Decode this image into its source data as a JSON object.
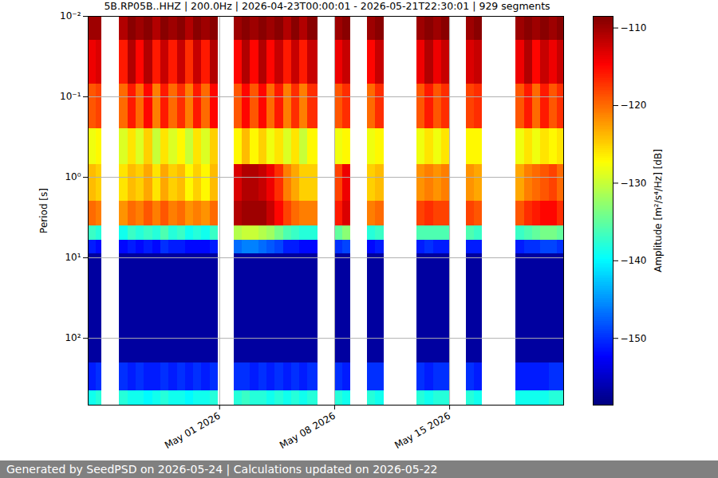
{
  "chart_data": {
    "type": "heatmap",
    "title": "5B.RP05B..HHZ | 200.0Hz | 2026-04-23T00:00:01 - 2026-05-21T22:30:01 | 929 segments",
    "footer": "Generated by SeedPSD on 2026-05-24 | Calculations updated on 2026-05-22",
    "y_label": "Period [s]",
    "colorbar_label": "Amplitude [m²/s⁴/Hz] [dB]",
    "log": "y",
    "grid": true,
    "xlim": [
      "2026-04-23T00:00:01Z",
      "2026-05-21T22:30:01Z"
    ],
    "xticks": [
      {
        "value": "2026-05-01T00:00:00Z",
        "label": "May 01 2026"
      },
      {
        "value": "2026-05-08T00:00:00Z",
        "label": "May 08 2026"
      },
      {
        "value": "2026-05-15T00:00:00Z",
        "label": "May 15 2026"
      }
    ],
    "ylim": [
      0.01,
      676
    ],
    "yticks": [
      {
        "value": 0.01,
        "label": "10⁻²"
      },
      {
        "value": 0.1,
        "label": "10⁻¹"
      },
      {
        "value": 1,
        "label": "10⁰"
      },
      {
        "value": 10,
        "label": "10¹"
      },
      {
        "value": 100,
        "label": "10²"
      }
    ],
    "period_bins": [
      0.01,
      0.02,
      0.07,
      0.25,
      0.7,
      2,
      4,
      6,
      9,
      200,
      450,
      676
    ],
    "columns": [
      {
        "start": "2026-04-23T00:00:01Z",
        "end": "2026-04-23T12:00:00Z",
        "values": [
          -110,
          -114,
          -119,
          -128,
          -124,
          -120,
          -137,
          -151,
          -157,
          -151,
          -139
        ]
      },
      {
        "start": "2026-04-23T12:00:00Z",
        "end": "2026-04-23T20:00:00Z",
        "values": [
          -110,
          -113,
          -118,
          -127,
          -125,
          -121,
          -138,
          -152,
          -157,
          -150,
          -138
        ]
      },
      {
        "start": "2026-04-24T22:00:00Z",
        "end": "2026-04-25T10:00:00Z",
        "values": [
          -111,
          -116,
          -120,
          -129,
          -126,
          -122,
          -139,
          -152,
          -157,
          -150,
          -138
        ]
      },
      {
        "start": "2026-04-25T10:00:00Z",
        "end": "2026-04-25T22:00:00Z",
        "values": [
          -109,
          -111,
          -116,
          -126,
          -124,
          -120,
          -137,
          -151,
          -157,
          -151,
          -139
        ]
      },
      {
        "start": "2026-04-25T22:00:00Z",
        "end": "2026-04-26T10:00:00Z",
        "values": [
          -110,
          -115,
          -120,
          -129,
          -125,
          -121,
          -138,
          -152,
          -157,
          -150,
          -139
        ]
      },
      {
        "start": "2026-04-26T10:00:00Z",
        "end": "2026-04-26T22:00:00Z",
        "values": [
          -109,
          -111,
          -115,
          -125,
          -123,
          -119,
          -137,
          -151,
          -157,
          -151,
          -140
        ]
      },
      {
        "start": "2026-04-26T22:00:00Z",
        "end": "2026-04-27T10:00:00Z",
        "values": [
          -111,
          -116,
          -121,
          -130,
          -126,
          -121,
          -138,
          -152,
          -157,
          -151,
          -139
        ]
      },
      {
        "start": "2026-04-27T10:00:00Z",
        "end": "2026-04-27T22:00:00Z",
        "values": [
          -109,
          -112,
          -116,
          -126,
          -123,
          -119,
          -136,
          -150,
          -157,
          -150,
          -138
        ]
      },
      {
        "start": "2026-04-27T22:00:00Z",
        "end": "2026-04-28T10:00:00Z",
        "values": [
          -110,
          -116,
          -120,
          -129,
          -125,
          -121,
          -138,
          -151,
          -157,
          -151,
          -139
        ]
      },
      {
        "start": "2026-04-28T10:00:00Z",
        "end": "2026-04-28T22:00:00Z",
        "values": [
          -109,
          -112,
          -117,
          -127,
          -124,
          -120,
          -137,
          -151,
          -157,
          -150,
          -139
        ]
      },
      {
        "start": "2026-04-28T22:00:00Z",
        "end": "2026-04-29T10:00:00Z",
        "values": [
          -111,
          -117,
          -121,
          -130,
          -127,
          -122,
          -139,
          -152,
          -157,
          -151,
          -140
        ]
      },
      {
        "start": "2026-04-29T10:00:00Z",
        "end": "2026-04-29T22:00:00Z",
        "values": [
          -109,
          -112,
          -116,
          -126,
          -125,
          -121,
          -138,
          -152,
          -157,
          -150,
          -139
        ]
      },
      {
        "start": "2026-04-29T22:00:00Z",
        "end": "2026-04-30T10:00:00Z",
        "values": [
          -110,
          -116,
          -120,
          -129,
          -127,
          -122,
          -139,
          -152,
          -157,
          -151,
          -139
        ]
      },
      {
        "start": "2026-04-30T10:00:00Z",
        "end": "2026-04-30T22:00:00Z",
        "values": [
          -109,
          -111,
          -115,
          -125,
          -124,
          -120,
          -137,
          -151,
          -157,
          -150,
          -138
        ]
      },
      {
        "start": "2026-05-01T21:00:00Z",
        "end": "2026-05-02T09:00:00Z",
        "values": [
          -110,
          -115,
          -119,
          -127,
          -113,
          -111,
          -131,
          -147,
          -157,
          -150,
          -138
        ]
      },
      {
        "start": "2026-05-02T09:00:00Z",
        "end": "2026-05-02T21:00:00Z",
        "values": [
          -109,
          -111,
          -115,
          -124,
          -111,
          -110,
          -130,
          -146,
          -157,
          -150,
          -137
        ]
      },
      {
        "start": "2026-05-02T21:00:00Z",
        "end": "2026-05-03T09:00:00Z",
        "values": [
          -110,
          -115,
          -119,
          -127,
          -111,
          -110,
          -130,
          -146,
          -157,
          -151,
          -138
        ]
      },
      {
        "start": "2026-05-03T09:00:00Z",
        "end": "2026-05-03T21:00:00Z",
        "values": [
          -109,
          -111,
          -115,
          -125,
          -112,
          -110,
          -131,
          -147,
          -157,
          -150,
          -138
        ]
      },
      {
        "start": "2026-05-03T21:00:00Z",
        "end": "2026-05-04T09:00:00Z",
        "values": [
          -110,
          -115,
          -120,
          -128,
          -114,
          -112,
          -132,
          -148,
          -157,
          -151,
          -139
        ]
      },
      {
        "start": "2026-05-04T09:00:00Z",
        "end": "2026-05-04T21:00:00Z",
        "values": [
          -109,
          -112,
          -116,
          -126,
          -117,
          -115,
          -134,
          -149,
          -157,
          -150,
          -138
        ]
      },
      {
        "start": "2026-05-04T21:00:00Z",
        "end": "2026-05-05T09:00:00Z",
        "values": [
          -111,
          -116,
          -121,
          -129,
          -121,
          -118,
          -136,
          -151,
          -157,
          -151,
          -139
        ]
      },
      {
        "start": "2026-05-05T09:00:00Z",
        "end": "2026-05-05T21:00:00Z",
        "values": [
          -109,
          -112,
          -117,
          -126,
          -123,
          -120,
          -137,
          -151,
          -157,
          -150,
          -138
        ]
      },
      {
        "start": "2026-05-05T21:00:00Z",
        "end": "2026-05-06T09:00:00Z",
        "values": [
          -111,
          -116,
          -121,
          -130,
          -125,
          -121,
          -138,
          -152,
          -157,
          -151,
          -139
        ]
      },
      {
        "start": "2026-05-06T09:00:00Z",
        "end": "2026-05-07T00:00:00Z",
        "values": [
          -109,
          -112,
          -117,
          -127,
          -125,
          -121,
          -138,
          -152,
          -157,
          -150,
          -138
        ]
      },
      {
        "start": "2026-05-08T00:00:00Z",
        "end": "2026-05-08T12:00:00Z",
        "values": [
          -110,
          -114,
          -119,
          -128,
          -118,
          -116,
          -135,
          -150,
          -157,
          -150,
          -138
        ]
      },
      {
        "start": "2026-05-08T12:00:00Z",
        "end": "2026-05-08T23:00:00Z",
        "values": [
          -109,
          -112,
          -117,
          -127,
          -114,
          -113,
          -133,
          -149,
          -157,
          -151,
          -139
        ]
      },
      {
        "start": "2026-05-10T00:00:00Z",
        "end": "2026-05-10T12:00:00Z",
        "values": [
          -110,
          -115,
          -120,
          -128,
          -125,
          -121,
          -138,
          -152,
          -157,
          -150,
          -138
        ]
      },
      {
        "start": "2026-05-10T12:00:00Z",
        "end": "2026-05-11T00:00:00Z",
        "values": [
          -109,
          -112,
          -117,
          -127,
          -124,
          -120,
          -137,
          -151,
          -157,
          -150,
          -139
        ]
      },
      {
        "start": "2026-05-13T00:00:00Z",
        "end": "2026-05-13T12:00:00Z",
        "values": [
          -110,
          -114,
          -119,
          -128,
          -122,
          -118,
          -136,
          -151,
          -157,
          -150,
          -138
        ]
      },
      {
        "start": "2026-05-13T12:00:00Z",
        "end": "2026-05-14T00:00:00Z",
        "values": [
          -109,
          -111,
          -116,
          -126,
          -121,
          -117,
          -136,
          -150,
          -157,
          -151,
          -139
        ]
      },
      {
        "start": "2026-05-14T00:00:00Z",
        "end": "2026-05-14T12:00:00Z",
        "values": [
          -110,
          -114,
          -119,
          -128,
          -122,
          -118,
          -136,
          -151,
          -157,
          -150,
          -138
        ]
      },
      {
        "start": "2026-05-14T12:00:00Z",
        "end": "2026-05-15T00:00:00Z",
        "values": [
          -109,
          -112,
          -117,
          -126,
          -121,
          -118,
          -136,
          -151,
          -157,
          -150,
          -138
        ]
      },
      {
        "start": "2026-05-16T00:00:00Z",
        "end": "2026-05-16T12:00:00Z",
        "values": [
          -110,
          -113,
          -118,
          -127,
          -122,
          -118,
          -136,
          -151,
          -157,
          -150,
          -138
        ]
      },
      {
        "start": "2026-05-16T12:00:00Z",
        "end": "2026-05-17T00:00:00Z",
        "values": [
          -109,
          -112,
          -117,
          -127,
          -123,
          -119,
          -137,
          -151,
          -157,
          -151,
          -139
        ]
      },
      {
        "start": "2026-05-19T01:00:00Z",
        "end": "2026-05-19T13:00:00Z",
        "values": [
          -110,
          -114,
          -119,
          -128,
          -123,
          -119,
          -137,
          -151,
          -157,
          -151,
          -139
        ]
      },
      {
        "start": "2026-05-19T13:00:00Z",
        "end": "2026-05-20T01:00:00Z",
        "values": [
          -109,
          -111,
          -116,
          -126,
          -121,
          -117,
          -136,
          -150,
          -157,
          -151,
          -139
        ]
      },
      {
        "start": "2026-05-20T01:00:00Z",
        "end": "2026-05-20T13:00:00Z",
        "values": [
          -110,
          -115,
          -120,
          -128,
          -120,
          -116,
          -135,
          -150,
          -157,
          -151,
          -139
        ]
      },
      {
        "start": "2026-05-20T13:00:00Z",
        "end": "2026-05-21T01:00:00Z",
        "values": [
          -109,
          -112,
          -116,
          -126,
          -119,
          -115,
          -134,
          -149,
          -157,
          -151,
          -139
        ]
      },
      {
        "start": "2026-05-21T01:00:00Z",
        "end": "2026-05-21T13:00:00Z",
        "values": [
          -110,
          -114,
          -119,
          -127,
          -118,
          -115,
          -134,
          -149,
          -157,
          -150,
          -138
        ]
      },
      {
        "start": "2026-05-21T13:00:00Z",
        "end": "2026-05-21T22:30:01Z",
        "values": [
          -109,
          -112,
          -117,
          -126,
          -120,
          -117,
          -135,
          -150,
          -157,
          -150,
          -138
        ]
      }
    ],
    "zlim": [
      -158.6,
      -108.5
    ],
    "zticks": [
      -150,
      -140,
      -130,
      -120,
      -110
    ]
  }
}
